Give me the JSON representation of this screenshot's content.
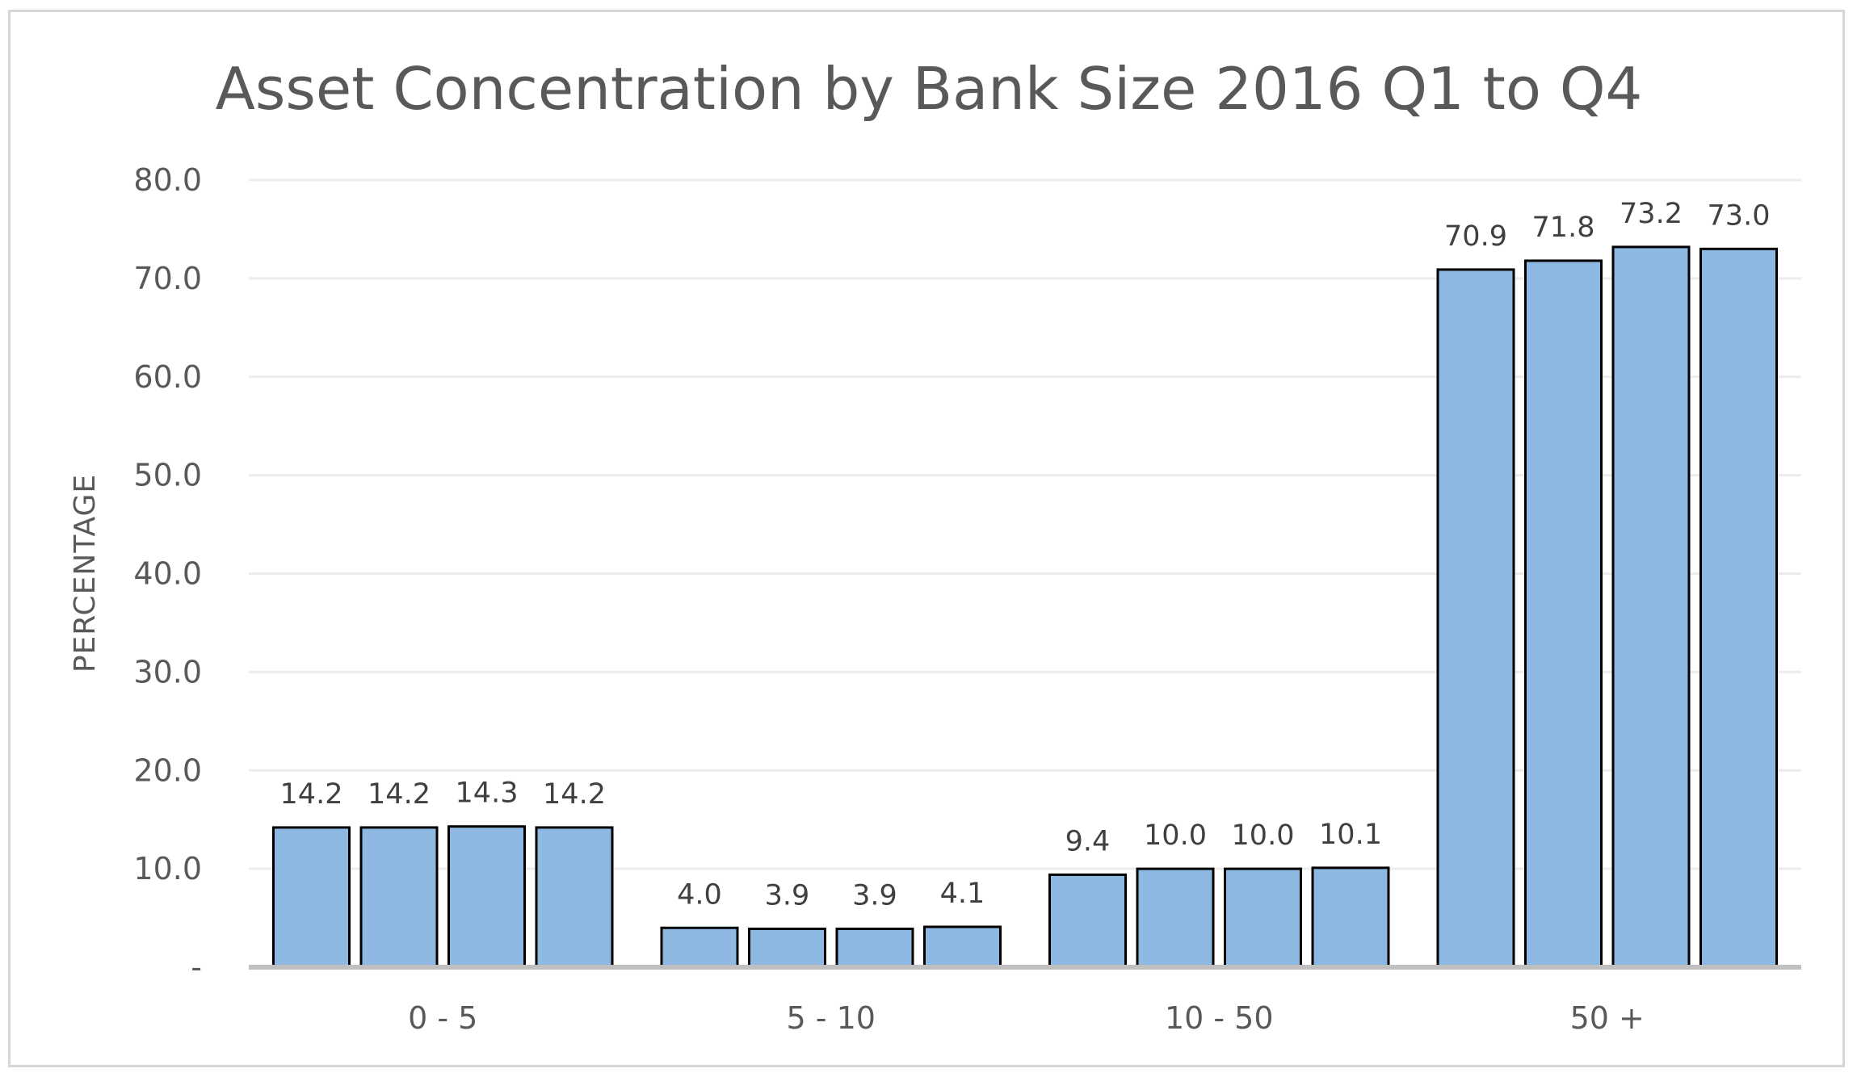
{
  "chart_data": {
    "type": "bar",
    "title": "Asset Concentration by Bank Size 2016 Q1 to Q4",
    "xlabel": "",
    "ylabel": "PERCENTAGE",
    "categories": [
      "0 - 5",
      "5 - 10",
      "10 - 50",
      "50 +"
    ],
    "series": [
      {
        "values": [
          14.2,
          4.0,
          9.4,
          70.9
        ]
      },
      {
        "values": [
          14.2,
          3.9,
          10.0,
          71.8
        ]
      },
      {
        "values": [
          14.3,
          3.9,
          10.0,
          73.2
        ]
      },
      {
        "values": [
          14.2,
          4.1,
          10.1,
          73.0
        ]
      }
    ],
    "ylim": [
      0,
      80
    ],
    "yticks": [
      0,
      10,
      20,
      30,
      40,
      50,
      60,
      70,
      80
    ],
    "ytick_labels": [
      "-",
      "10.0",
      "20.0",
      "30.0",
      "40.0",
      "50.0",
      "60.0",
      "70.0",
      "80.0"
    ],
    "grid": true,
    "legend": "none",
    "bar_color": "#8db8e2",
    "bar_edge_color": "#000000",
    "gridline_color": "#ececec",
    "baseline_color": "#bfbfbf",
    "text_color": "#595959"
  }
}
